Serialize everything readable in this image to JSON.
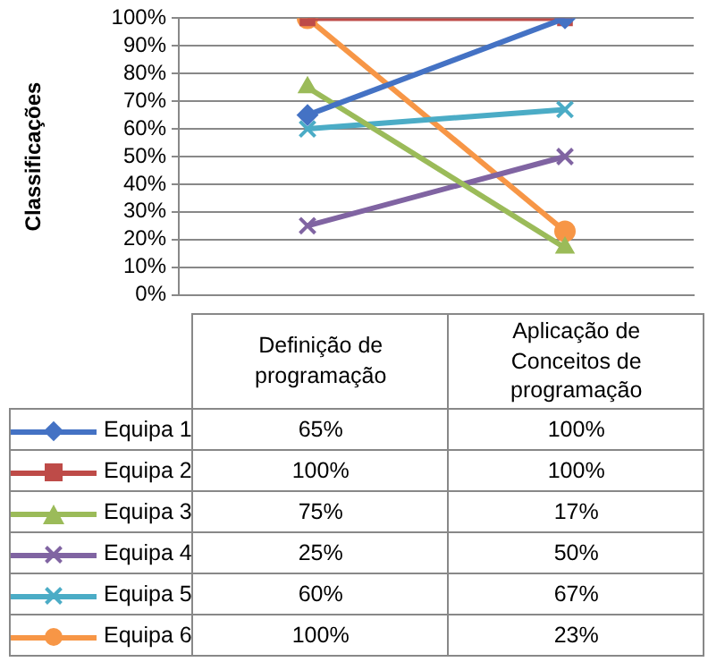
{
  "chart_data": {
    "type": "line",
    "ylabel": "Classificações",
    "categories": [
      "Definição de programação",
      "Aplicação de Conceitos de programação"
    ],
    "ylim": [
      0,
      100
    ],
    "yticks": [
      {
        "value": 0,
        "label": "0%"
      },
      {
        "value": 10,
        "label": "10%"
      },
      {
        "value": 20,
        "label": "20%"
      },
      {
        "value": 30,
        "label": "30%"
      },
      {
        "value": 40,
        "label": "40%"
      },
      {
        "value": 50,
        "label": "50%"
      },
      {
        "value": 60,
        "label": "60%"
      },
      {
        "value": 70,
        "label": "70%"
      },
      {
        "value": 80,
        "label": "80%"
      },
      {
        "value": 90,
        "label": "90%"
      },
      {
        "value": 100,
        "label": "100%"
      }
    ],
    "grid": "y",
    "legend": "bottom",
    "tick_labels": "y",
    "line_style": "solid",
    "series": [
      {
        "name": "Equipa 1",
        "color": "#4472c4",
        "marker": "diamond",
        "values": [
          65,
          100
        ],
        "value_labels": [
          "65%",
          "100%"
        ]
      },
      {
        "name": "Equipa 2",
        "color": "#be4b48",
        "marker": "square",
        "values": [
          100,
          100
        ],
        "value_labels": [
          "100%",
          "100%"
        ]
      },
      {
        "name": "Equipa 3",
        "color": "#9bbb59",
        "marker": "triangle",
        "values": [
          75,
          17
        ],
        "value_labels": [
          "75%",
          "17%"
        ]
      },
      {
        "name": "Equipa 4",
        "color": "#8064a2",
        "marker": "cross",
        "values": [
          25,
          50
        ],
        "value_labels": [
          "25%",
          "50%"
        ]
      },
      {
        "name": "Equipa 5",
        "color": "#4bacc6",
        "marker": "cross",
        "values": [
          60,
          67
        ],
        "value_labels": [
          "60%",
          "67%"
        ]
      },
      {
        "name": "Equipa 6",
        "color": "#f79646",
        "marker": "circle",
        "values": [
          100,
          23
        ],
        "value_labels": [
          "100%",
          "23%"
        ]
      }
    ]
  }
}
